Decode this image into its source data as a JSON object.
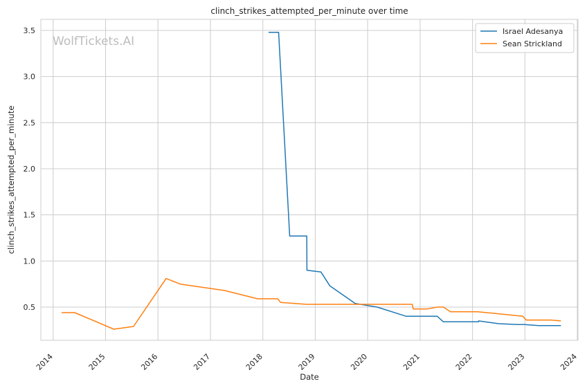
{
  "chart_data": {
    "type": "line",
    "title": "clinch_strikes_attempted_per_minute over time",
    "xlabel": "Date",
    "ylabel": "clinch_strikes_attempted_per_minute",
    "watermark": "WolfTickets.AI",
    "xlim": [
      "2013-10-07",
      "2024-01-06"
    ],
    "ylim": [
      0.14,
      3.62
    ],
    "x_ticks": [
      "2014",
      "2015",
      "2016",
      "2017",
      "2018",
      "2019",
      "2020",
      "2021",
      "2022",
      "2023",
      "2024"
    ],
    "y_ticks": [
      "0.5",
      "1.0",
      "1.5",
      "2.0",
      "2.5",
      "3.0",
      "3.5"
    ],
    "grid": true,
    "legend_position": "top-right",
    "series": [
      {
        "name": "Israel Adesanya",
        "color": "#1f77b4",
        "points": [
          [
            "2018-02-10",
            3.48
          ],
          [
            "2018-04-21",
            3.48
          ],
          [
            "2018-07-07",
            1.27
          ],
          [
            "2018-11-03",
            1.27
          ],
          [
            "2018-11-04",
            0.9
          ],
          [
            "2019-02-10",
            0.88
          ],
          [
            "2019-04-13",
            0.73
          ],
          [
            "2019-10-06",
            0.54
          ],
          [
            "2020-03-07",
            0.5
          ],
          [
            "2020-09-26",
            0.4
          ],
          [
            "2021-03-06",
            0.4
          ],
          [
            "2021-04-30",
            0.4
          ],
          [
            "2021-06-12",
            0.34
          ],
          [
            "2022-02-12",
            0.34
          ],
          [
            "2022-02-13",
            0.35
          ],
          [
            "2022-07-02",
            0.32
          ],
          [
            "2022-11-12",
            0.31
          ],
          [
            "2022-12-31",
            0.31
          ],
          [
            "2023-04-08",
            0.3
          ],
          [
            "2023-09-09",
            0.3
          ]
        ]
      },
      {
        "name": "Sean Strickland",
        "color": "#ff7f0e",
        "points": [
          [
            "2014-03-01",
            0.44
          ],
          [
            "2014-05-31",
            0.44
          ],
          [
            "2015-02-28",
            0.26
          ],
          [
            "2015-07-15",
            0.29
          ],
          [
            "2016-02-27",
            0.81
          ],
          [
            "2016-06-04",
            0.75
          ],
          [
            "2017-04-08",
            0.68
          ],
          [
            "2017-11-25",
            0.59
          ],
          [
            "2018-04-14",
            0.59
          ],
          [
            "2018-05-05",
            0.55
          ],
          [
            "2018-11-01",
            0.53
          ],
          [
            "2020-10-31",
            0.53
          ],
          [
            "2020-11-07",
            0.53
          ],
          [
            "2020-11-14",
            0.48
          ],
          [
            "2021-02-20",
            0.48
          ],
          [
            "2021-05-01",
            0.5
          ],
          [
            "2021-06-12",
            0.5
          ],
          [
            "2021-07-31",
            0.45
          ],
          [
            "2022-02-05",
            0.45
          ],
          [
            "2022-06-10",
            0.43
          ],
          [
            "2022-12-17",
            0.4
          ],
          [
            "2023-01-10",
            0.36
          ],
          [
            "2023-07-01",
            0.36
          ],
          [
            "2023-09-09",
            0.35
          ]
        ]
      }
    ]
  }
}
